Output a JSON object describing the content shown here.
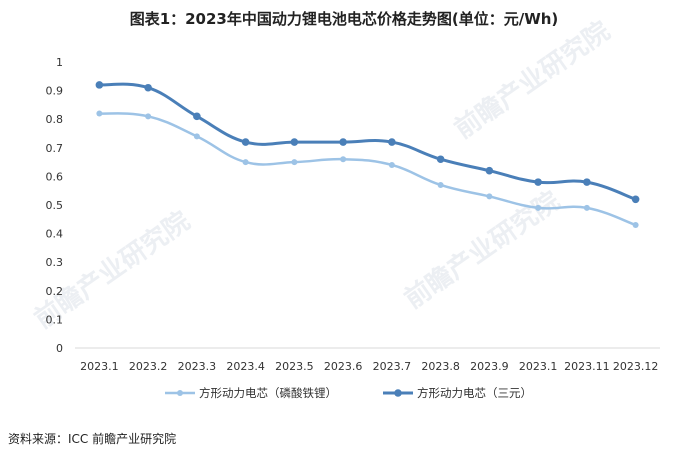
{
  "chart_data": {
    "type": "line",
    "title": "图表1：2023年中国动力锂电池电芯价格走势图(单位：元/Wh)",
    "categories": [
      "2023.1",
      "2023.2",
      "2023.3",
      "2023.4",
      "2023.5",
      "2023.6",
      "2023.7",
      "2023.8",
      "2023.9",
      "2023.1",
      "2023.11",
      "2023.12"
    ],
    "series": [
      {
        "name": "方形动力电芯（磷酸铁锂）",
        "color": "#9dc3e6",
        "values": [
          0.82,
          0.81,
          0.74,
          0.65,
          0.65,
          0.66,
          0.64,
          0.57,
          0.53,
          0.49,
          0.49,
          0.43
        ]
      },
      {
        "name": "方形动力电芯（三元）",
        "color": "#4a7fb8",
        "values": [
          0.92,
          0.91,
          0.81,
          0.72,
          0.72,
          0.72,
          0.72,
          0.66,
          0.62,
          0.58,
          0.58,
          0.52
        ]
      }
    ],
    "yticks": [
      "0",
      "0.1",
      "0.2",
      "0.3",
      "0.4",
      "0.5",
      "0.6",
      "0.7",
      "0.8",
      "0.9",
      "1"
    ],
    "ylim": [
      0,
      1
    ],
    "grid": false,
    "legend_position": "bottom"
  },
  "source": "资料来源：ICC 前瞻产业研究院",
  "watermark": "前瞻产业研究院"
}
